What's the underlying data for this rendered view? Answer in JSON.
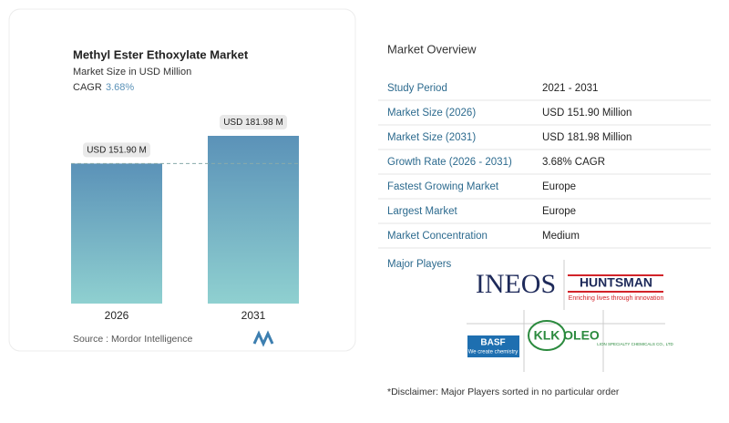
{
  "chart_data": {
    "type": "bar",
    "title": "Methyl Ester Ethoxylate Market",
    "subtitle": "Market Size in USD Million",
    "cagr_label": "CAGR",
    "cagr_value": "3.68%",
    "categories": [
      "2026",
      "2031"
    ],
    "values": [
      151.9,
      181.98
    ],
    "value_labels": [
      "USD 151.90 M",
      "USD 181.98 M"
    ],
    "color_top": "#5b92b8",
    "color_bottom": "#8fd0d0",
    "source": "Source :  Mordor Intelligence"
  },
  "overview": {
    "title": "Market Overview",
    "rows": [
      [
        "Study Period",
        "2021 - 2031"
      ],
      [
        "Market Size (2026)",
        "USD 151.90 Million"
      ],
      [
        "Market Size (2031)",
        "USD 181.98 Million"
      ],
      [
        "Growth Rate (2026 - 2031)",
        "3.68% CAGR"
      ],
      [
        "Fastest Growing Market",
        "Europe"
      ],
      [
        "Largest Market",
        "Europe"
      ],
      [
        "Market Concentration",
        "Medium"
      ]
    ],
    "players_title": "Major Players",
    "players": {
      "ineos": "INEOS",
      "huntsman": "HUNTSMAN",
      "huntsman_tag": "Enriching lives through innovation",
      "basf": "BASF",
      "basf_tag": "We create chemistry",
      "klk": "KLK",
      "oleo": "OLEO",
      "lion": "LION SPECIALTY CHEMICALS CO., LTD"
    },
    "disclaimer": "*Disclaimer: Major Players sorted in no particular order"
  }
}
